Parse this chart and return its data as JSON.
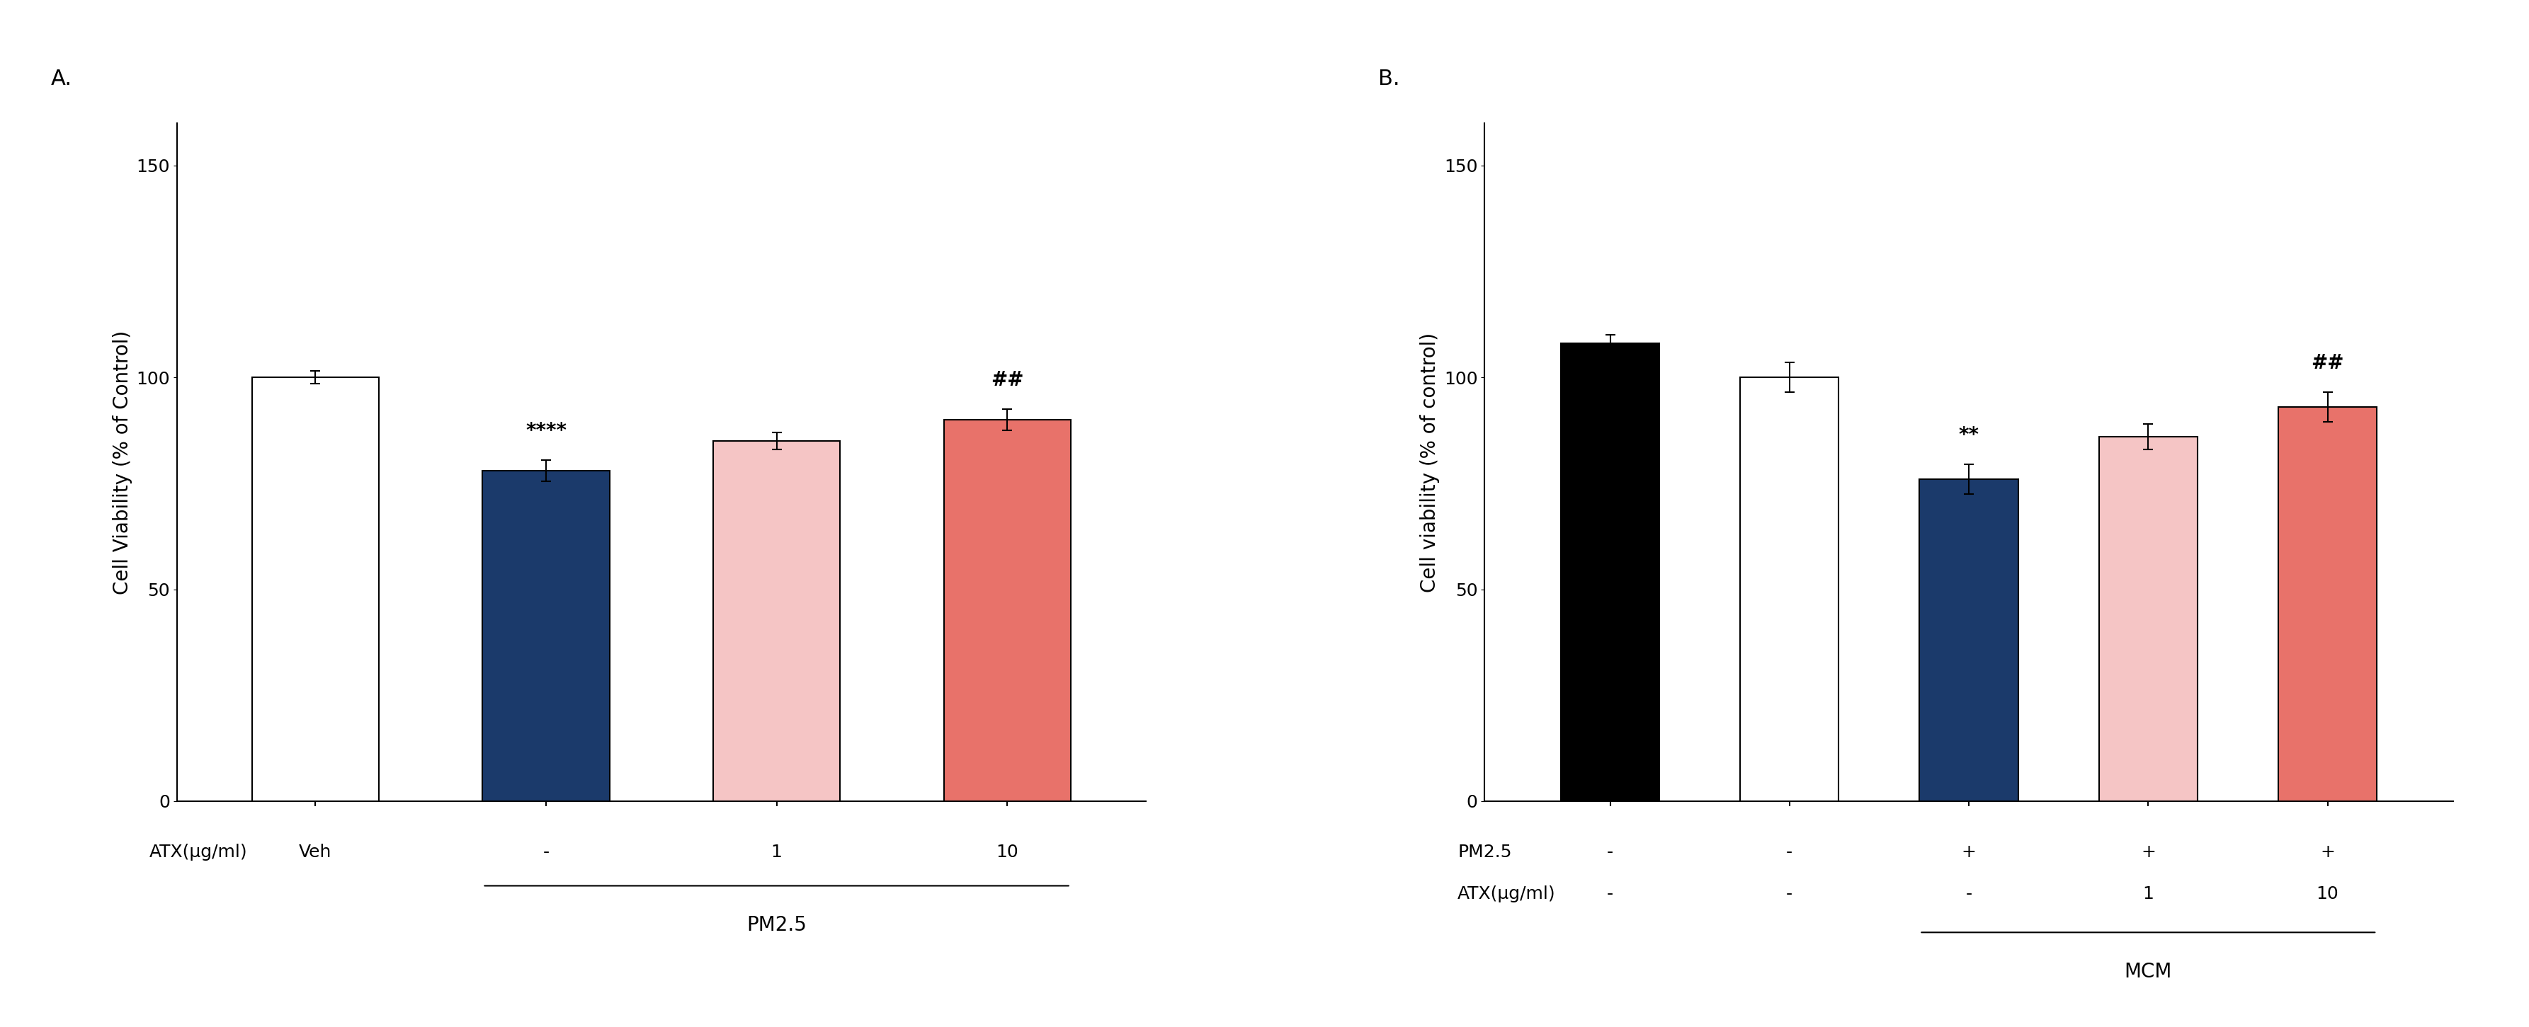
{
  "panel_A": {
    "title": "A.",
    "ylabel": "Cell Viability (% of Control)",
    "ylim": [
      0,
      160
    ],
    "yticks": [
      0,
      50,
      100,
      150
    ],
    "bar_values": [
      100,
      78,
      85,
      90
    ],
    "bar_errors": [
      1.5,
      2.5,
      2.0,
      2.5
    ],
    "bar_colors": [
      "#FFFFFF",
      "#1B3A6B",
      "#F5C5C5",
      "#E8726A"
    ],
    "bar_edgecolors": [
      "#000000",
      "#000000",
      "#000000",
      "#000000"
    ],
    "x_labels_row1": [
      "Veh",
      "-",
      "1",
      "10"
    ],
    "x_label_row0": "ATX(μg/ml)",
    "bracket_label": "PM2.5",
    "bracket_indices": [
      1,
      3
    ],
    "annotations": [
      "",
      "****",
      "",
      "##"
    ],
    "annotation_offsets": [
      0,
      3,
      0,
      3
    ]
  },
  "panel_B": {
    "title": "B.",
    "ylabel": "Cell viability (% of control)",
    "ylim": [
      0,
      160
    ],
    "yticks": [
      0,
      50,
      100,
      150
    ],
    "bar_values": [
      108,
      100,
      76,
      86,
      93
    ],
    "bar_errors": [
      2.0,
      3.5,
      3.5,
      3.0,
      3.5
    ],
    "bar_colors": [
      "#000000",
      "#FFFFFF",
      "#1B3A6B",
      "#F5C5C5",
      "#E8726A"
    ],
    "bar_edgecolors": [
      "#000000",
      "#000000",
      "#000000",
      "#000000",
      "#000000"
    ],
    "x_labels_pm25": [
      "-",
      "-",
      "+",
      "+",
      "+"
    ],
    "x_labels_atx": [
      "-",
      "-",
      "-",
      "1",
      "10"
    ],
    "x_label_row0_pm": "PM2.5",
    "x_label_row0_atx": "ATX(μg/ml)",
    "bracket_label": "MCM",
    "bracket_indices": [
      2,
      4
    ],
    "annotations": [
      "",
      "",
      "**",
      "",
      "##"
    ],
    "annotation_offsets": [
      0,
      0,
      3,
      0,
      3
    ]
  },
  "background_color": "#FFFFFF",
  "bar_width": 0.55,
  "fontsize_label": 20,
  "fontsize_tick": 18,
  "fontsize_annot": 20,
  "fontsize_title": 22,
  "fontsize_bracket_label": 20,
  "fontsize_xrow": 18
}
